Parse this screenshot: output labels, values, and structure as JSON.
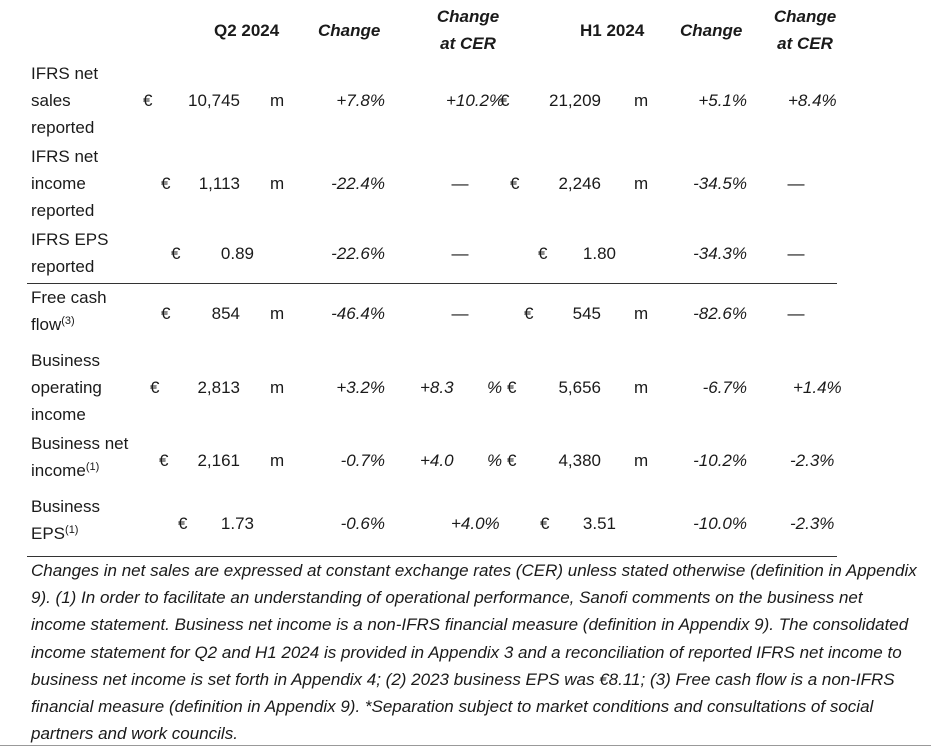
{
  "header": {
    "q2": "Q2 2024",
    "change": "Change",
    "change_cer_line1": "Change",
    "change_cer_line2": "at CER",
    "h1": "H1 2024",
    "change2": "Change",
    "change_cer2_line1": "Change",
    "change_cer2_line2": "at CER"
  },
  "rows": [
    {
      "label_lines": [
        "IFRS net",
        "sales",
        "reported"
      ],
      "q2_cur": "€",
      "q2_val": "10,745",
      "q2_unit": "m",
      "q2_change": "+7.8%",
      "q2_cer": "+10.2%",
      "q2_cer_unit": "",
      "h1_cur": "€",
      "h1_val": "21,209",
      "h1_unit": "m",
      "h1_change": "+5.1%",
      "h1_cer": "+8.4%"
    },
    {
      "label_lines": [
        "IFRS net",
        "income",
        "reported"
      ],
      "q2_cur": "€",
      "q2_val": "1,113",
      "q2_unit": "m",
      "q2_change": "-22.4%",
      "q2_cer": "—",
      "q2_cer_unit": "",
      "h1_cur": "€",
      "h1_val": "2,246",
      "h1_unit": "m",
      "h1_change": "-34.5%",
      "h1_cer": "—"
    },
    {
      "label_lines": [
        "IFRS EPS",
        "reported"
      ],
      "q2_cur": "€",
      "q2_val": "0.89",
      "q2_unit": "",
      "q2_change": "-22.6%",
      "q2_cer": "—",
      "q2_cer_unit": "",
      "h1_cur": "€",
      "h1_val": "1.80",
      "h1_unit": "",
      "h1_change": "-34.3%",
      "h1_cer": "—"
    },
    {
      "label_lines": [
        "Free cash",
        "flow"
      ],
      "label_sup": "(3)",
      "q2_cur": "€",
      "q2_val": "854",
      "q2_unit": "m",
      "q2_change": "-46.4%",
      "q2_cer": "—",
      "q2_cer_unit": "",
      "h1_cur": "€",
      "h1_val": "545",
      "h1_unit": "m",
      "h1_change": "-82.6%",
      "h1_cer": "—"
    },
    {
      "label_lines": [
        "Business",
        "operating",
        "income"
      ],
      "q2_cur": "€",
      "q2_val": "2,813",
      "q2_unit": "m",
      "q2_change": "+3.2%",
      "q2_cer": "+8.3",
      "q2_cer_unit": "%",
      "h1_cur": "€",
      "h1_val": "5,656",
      "h1_unit": "m",
      "h1_change": "-6.7%",
      "h1_cer": "+1.4%"
    },
    {
      "label_lines": [
        "Business net",
        "income"
      ],
      "label_sup": "(1)",
      "q2_cur": "€",
      "q2_val": "2,161",
      "q2_unit": "m",
      "q2_change": "-0.7%",
      "q2_cer": "+4.0",
      "q2_cer_unit": "%",
      "h1_cur": "€",
      "h1_val": "4,380",
      "h1_unit": "m",
      "h1_change": "-10.2%",
      "h1_cer": "-2.3%"
    },
    {
      "label_lines": [
        "Business",
        "EPS"
      ],
      "label_sup": "(1)",
      "q2_cur": "€",
      "q2_val": "1.73",
      "q2_unit": "",
      "q2_change": "-0.6%",
      "q2_cer": "+4.0%",
      "q2_cer_unit": "",
      "h1_cur": "€",
      "h1_val": "3.51",
      "h1_unit": "",
      "h1_change": "-10.0%",
      "h1_cer": "-2.3%"
    }
  ],
  "footnote": "Changes in net sales are expressed at constant exchange rates (CER) unless stated otherwise (definition in Appendix 9). (1) In order to facilitate an understanding of operational performance, Sanofi comments on the business net income statement. Business net income is a non-IFRS financial measure (definition in Appendix 9). The consolidated income statement for Q2 and H1 2024 is provided in Appendix 3 and a reconciliation of reported IFRS net income to business net income is set forth in Appendix 4; (2) 2023 business EPS was €8.11; (3) Free cash flow is a non-IFRS financial measure (definition in Appendix 9). *Separation subject to market conditions and consultations of social partners and work councils."
}
